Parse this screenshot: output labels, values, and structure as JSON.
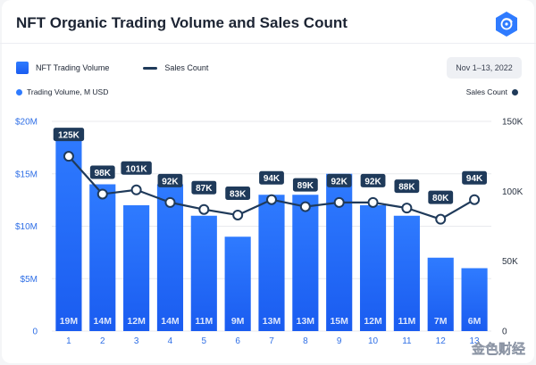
{
  "header": {
    "title": "NFT Organic Trading Volume and Sales Count",
    "date_range": "Nov 1–13, 2022"
  },
  "legend": {
    "bar_label": "NFT Trading Volume",
    "line_label": "Sales Count",
    "left_axis_key": "Trading Volume, M USD",
    "right_axis_key": "Sales Count"
  },
  "colors": {
    "bar_top": "#2f7bff",
    "bar_bottom": "#1a5cf0",
    "line": "#1f3a5a",
    "label_bg": "#1f3a5a",
    "left_axis_text": "#2f6fe6",
    "right_axis_text": "#2a3342"
  },
  "watermark": "金色财经",
  "chart_data": {
    "type": "bar",
    "categories": [
      "1",
      "2",
      "3",
      "4",
      "5",
      "6",
      "7",
      "8",
      "9",
      "10",
      "11",
      "12",
      "13"
    ],
    "series": [
      {
        "name": "NFT Trading Volume",
        "axis": "left",
        "values": [
          19,
          14,
          12,
          14,
          11,
          9,
          13,
          13,
          15,
          12,
          11,
          7,
          6
        ],
        "labels": [
          "19M",
          "14M",
          "12M",
          "14M",
          "11M",
          "9M",
          "13M",
          "13M",
          "15M",
          "12M",
          "11M",
          "7M",
          "6M"
        ]
      },
      {
        "name": "Sales Count",
        "type": "line",
        "axis": "right",
        "values": [
          125,
          98,
          101,
          92,
          87,
          83,
          94,
          89,
          92,
          92,
          88,
          80,
          94
        ],
        "labels": [
          "125K",
          "98K",
          "101K",
          "92K",
          "87K",
          "83K",
          "94K",
          "89K",
          "92K",
          "92K",
          "88K",
          "80K",
          "94K"
        ]
      }
    ],
    "y_left": {
      "ylim": [
        0,
        20
      ],
      "ticks": [
        0,
        5,
        10,
        15,
        20
      ],
      "tick_labels": [
        "0",
        "$5M",
        "$10M",
        "$15M",
        "$20M"
      ]
    },
    "y_right": {
      "ylim": [
        0,
        150
      ],
      "ticks": [
        0,
        50,
        100,
        150
      ],
      "tick_labels": [
        "0",
        "50K",
        "100K",
        "150K"
      ]
    },
    "grid": true
  }
}
